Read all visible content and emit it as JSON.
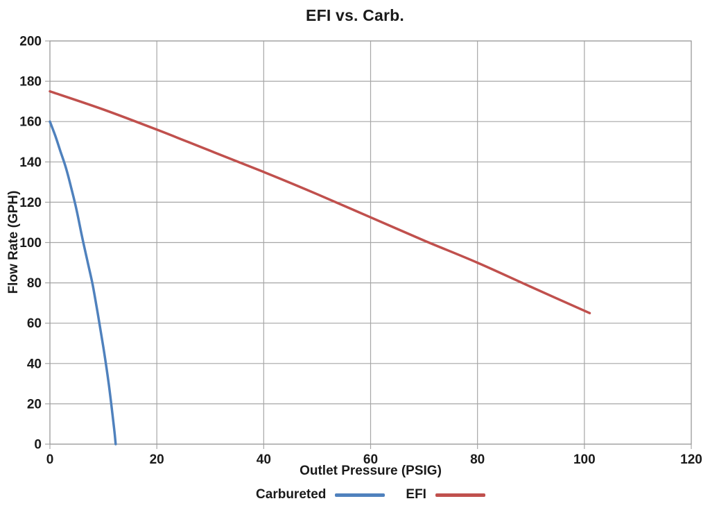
{
  "chart_data": {
    "type": "line",
    "title": "EFI vs. Carb.",
    "xlabel": "Outlet Pressure (PSIG)",
    "ylabel": "Flow Rate (GPH)",
    "xlim": [
      0,
      120
    ],
    "ylim": [
      0,
      200
    ],
    "x_ticks": [
      0,
      20,
      40,
      60,
      80,
      100,
      120
    ],
    "y_ticks": [
      0,
      20,
      40,
      60,
      80,
      100,
      120,
      140,
      160,
      180,
      200
    ],
    "grid": true,
    "legend_position": "bottom",
    "series": [
      {
        "name": "Carbureted",
        "color": "#4F81BD",
        "points": [
          [
            0,
            160
          ],
          [
            1,
            153
          ],
          [
            2,
            145
          ],
          [
            3,
            137
          ],
          [
            4,
            127
          ],
          [
            5,
            116
          ],
          [
            6,
            103
          ],
          [
            7,
            91
          ],
          [
            8,
            79
          ],
          [
            9,
            64
          ],
          [
            10,
            48
          ],
          [
            11,
            30
          ],
          [
            12,
            8
          ],
          [
            12.3,
            0
          ]
        ]
      },
      {
        "name": "EFI",
        "color": "#C0504D",
        "points": [
          [
            0,
            175
          ],
          [
            10,
            166
          ],
          [
            20,
            156
          ],
          [
            30,
            145.5
          ],
          [
            40,
            135
          ],
          [
            50,
            124
          ],
          [
            60,
            112.5
          ],
          [
            70,
            101
          ],
          [
            80,
            90
          ],
          [
            90,
            78
          ],
          [
            101,
            65
          ]
        ]
      }
    ],
    "colors": {
      "grid": "#A6A6A6",
      "plot_border": "#9B9B9B",
      "text": "#1A1A1A",
      "background": "#FFFFFF"
    }
  }
}
